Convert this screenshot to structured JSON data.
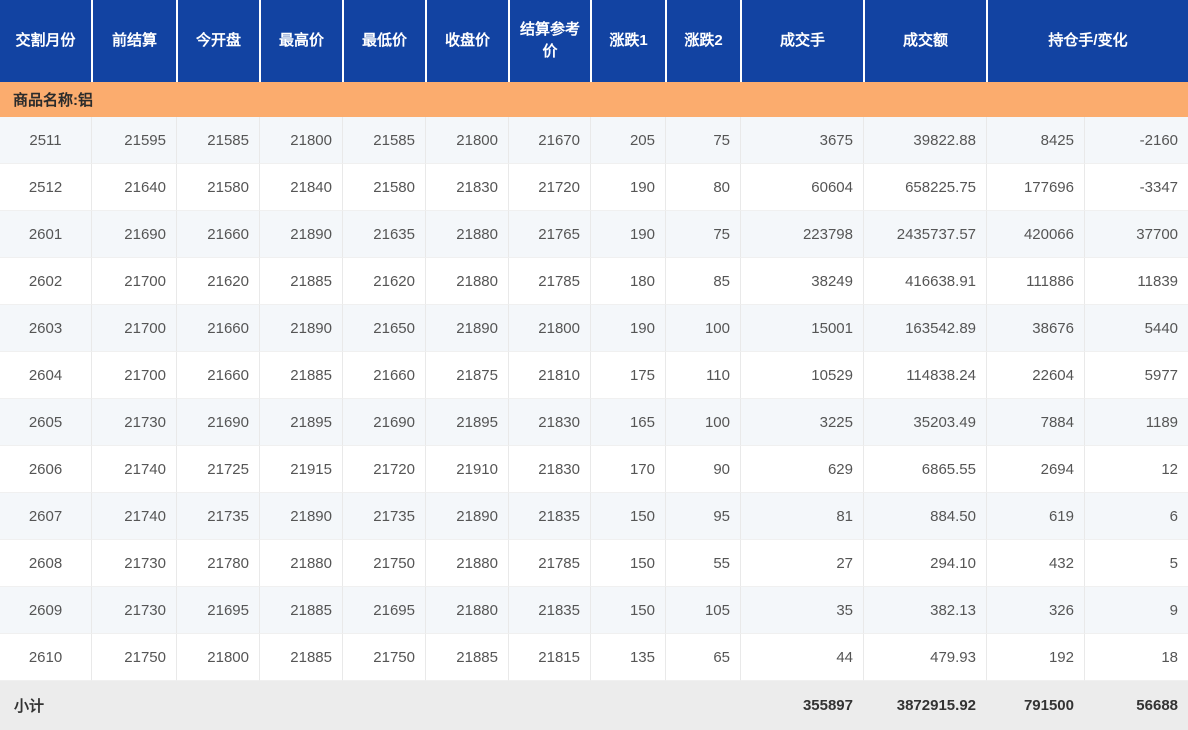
{
  "colors": {
    "header_bg": "#1243a2",
    "group_bg": "#fbac6e",
    "stripe_bg": "#f4f7fa",
    "subtotal_bg": "#ececec",
    "data_text": "#555555"
  },
  "table": {
    "headers": [
      "交割月份",
      "前结算",
      "今开盘",
      "最高价",
      "最低价",
      "收盘价",
      "结算参考价",
      "涨跌1",
      "涨跌2",
      "成交手",
      "成交额",
      "持仓手/变化"
    ],
    "group_label": "商品名称:铝",
    "rows": [
      [
        "2511",
        "21595",
        "21585",
        "21800",
        "21585",
        "21800",
        "21670",
        "205",
        "75",
        "3675",
        "39822.88",
        "8425",
        "-2160"
      ],
      [
        "2512",
        "21640",
        "21580",
        "21840",
        "21580",
        "21830",
        "21720",
        "190",
        "80",
        "60604",
        "658225.75",
        "177696",
        "-3347"
      ],
      [
        "2601",
        "21690",
        "21660",
        "21890",
        "21635",
        "21880",
        "21765",
        "190",
        "75",
        "223798",
        "2435737.57",
        "420066",
        "37700"
      ],
      [
        "2602",
        "21700",
        "21620",
        "21885",
        "21620",
        "21880",
        "21785",
        "180",
        "85",
        "38249",
        "416638.91",
        "111886",
        "11839"
      ],
      [
        "2603",
        "21700",
        "21660",
        "21890",
        "21650",
        "21890",
        "21800",
        "190",
        "100",
        "15001",
        "163542.89",
        "38676",
        "5440"
      ],
      [
        "2604",
        "21700",
        "21660",
        "21885",
        "21660",
        "21875",
        "21810",
        "175",
        "110",
        "10529",
        "114838.24",
        "22604",
        "5977"
      ],
      [
        "2605",
        "21730",
        "21690",
        "21895",
        "21690",
        "21895",
        "21830",
        "165",
        "100",
        "3225",
        "35203.49",
        "7884",
        "1189"
      ],
      [
        "2606",
        "21740",
        "21725",
        "21915",
        "21720",
        "21910",
        "21830",
        "170",
        "90",
        "629",
        "6865.55",
        "2694",
        "12"
      ],
      [
        "2607",
        "21740",
        "21735",
        "21890",
        "21735",
        "21890",
        "21835",
        "150",
        "95",
        "81",
        "884.50",
        "619",
        "6"
      ],
      [
        "2608",
        "21730",
        "21780",
        "21880",
        "21750",
        "21880",
        "21785",
        "150",
        "55",
        "27",
        "294.10",
        "432",
        "5"
      ],
      [
        "2609",
        "21730",
        "21695",
        "21885",
        "21695",
        "21880",
        "21835",
        "150",
        "105",
        "35",
        "382.13",
        "326",
        "9"
      ],
      [
        "2610",
        "21750",
        "21800",
        "21885",
        "21750",
        "21885",
        "21815",
        "135",
        "65",
        "44",
        "479.93",
        "192",
        "18"
      ]
    ],
    "subtotal": {
      "label": "小计",
      "volume": "355897",
      "turnover": "3872915.92",
      "open_interest": "791500",
      "oi_change": "56688"
    }
  }
}
